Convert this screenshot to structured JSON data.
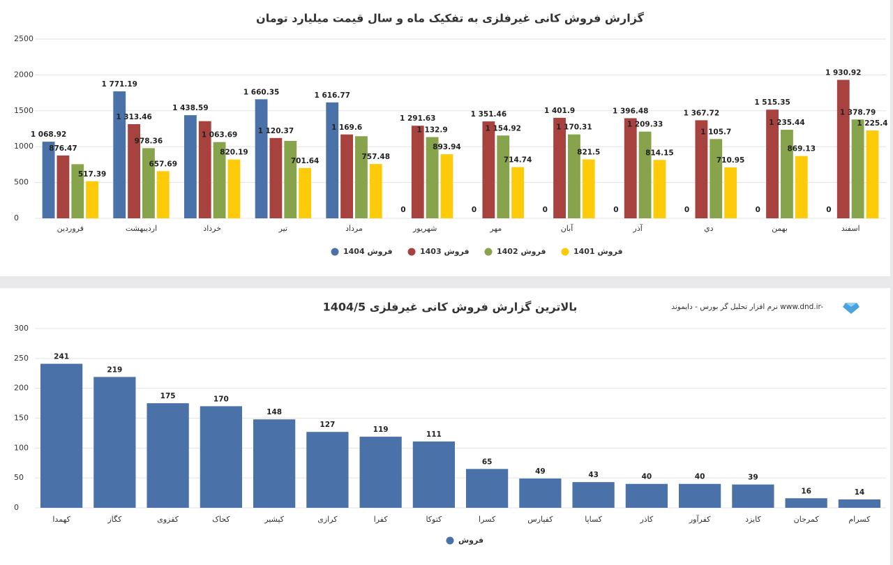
{
  "chart_data": [
    {
      "type": "bar",
      "title": "گزارش فروش کانی غیرفلزی به تفکیک ماه و سال قیمت میلیارد تومان",
      "categories": [
        "فروردین",
        "اردیبهشت",
        "خرداد",
        "تیر",
        "مرداد",
        "شهریور",
        "مهر",
        "آبان",
        "آذر",
        "دي",
        "بهمن",
        "اسفند"
      ],
      "series": [
        {
          "name": "فروش 1404",
          "color": "#4a72a8",
          "values": [
            1068.92,
            1771.19,
            1438.59,
            1660.35,
            1616.77,
            0,
            0,
            0,
            0,
            0,
            0,
            0
          ],
          "value_labels": [
            "1 068.92",
            "1 771.19",
            "1 438.59",
            "1 660.35",
            "1 616.77",
            "0",
            "0",
            "0",
            "0",
            "0",
            "0",
            "0"
          ]
        },
        {
          "name": "فروش 1403",
          "color": "#a8423f",
          "values": [
            876.47,
            1313.46,
            1355,
            1120.37,
            1169.6,
            1291.63,
            1351.46,
            1401.9,
            1396.48,
            1367.72,
            1515.35,
            1930.92
          ],
          "value_labels": [
            "876.47",
            "1 313.46",
            null,
            "1 120.37",
            "1 169.6",
            "1 291.63",
            "1 351.46",
            "1 401.9",
            "1 396.48",
            "1 367.72",
            "1 515.35",
            "1 930.92"
          ]
        },
        {
          "name": "فروش 1402",
          "color": "#87a34c",
          "values": [
            755,
            978.36,
            1063.69,
            1080,
            1145,
            1132.9,
            1154.92,
            1170.31,
            1209.33,
            1105.7,
            1235.44,
            1378.79
          ],
          "value_labels": [
            null,
            "978.36",
            "1 063.69",
            null,
            null,
            "1 132.9",
            "1 154.92",
            "1 170.31",
            "1 209.33",
            "1 105.7",
            "1 235.44",
            "1 378.79"
          ]
        },
        {
          "name": "فروش 1401",
          "color": "#fecb0a",
          "values": [
            517.39,
            657.69,
            820.19,
            701.64,
            757.48,
            893.94,
            714.74,
            821.5,
            814.15,
            710.95,
            869.13,
            1225.4
          ],
          "value_labels": [
            "517.39",
            "657.69",
            "820.19",
            "701.64",
            "757.48",
            "893.94",
            "714.74",
            "821.5",
            "814.15",
            "710.95",
            "869.13",
            "1 225.4"
          ]
        }
      ],
      "ylim": [
        0,
        2500
      ],
      "yticks": [
        0,
        500,
        1000,
        1500,
        2000,
        2500
      ],
      "grid": true
    },
    {
      "type": "bar",
      "title": "بالاترین گزارش فروش کانی غیرفلزی 1404/5",
      "subtitle": "نرم افزار تحلیل گر بورس - دایموند www.dnd.ir-",
      "categories": [
        "کهمدا",
        "کگاز",
        "کقزوی",
        "کحاک",
        "کپشیر",
        "کرازی",
        "کفرا",
        "کتوکا",
        "کسرا",
        "کفپارس",
        "کساپا",
        "کاذر",
        "کفرآور",
        "کایزد",
        "کمرجان",
        "کسرام"
      ],
      "series": [
        {
          "name": "فروش",
          "color": "#4a72a8",
          "values": [
            241,
            219,
            175,
            170,
            148,
            127,
            119,
            111,
            65,
            49,
            43,
            40,
            40,
            39,
            16,
            14
          ]
        }
      ],
      "ylim": [
        0,
        300
      ],
      "yticks": [
        0,
        50,
        100,
        150,
        200,
        250,
        300
      ],
      "grid": true
    }
  ]
}
